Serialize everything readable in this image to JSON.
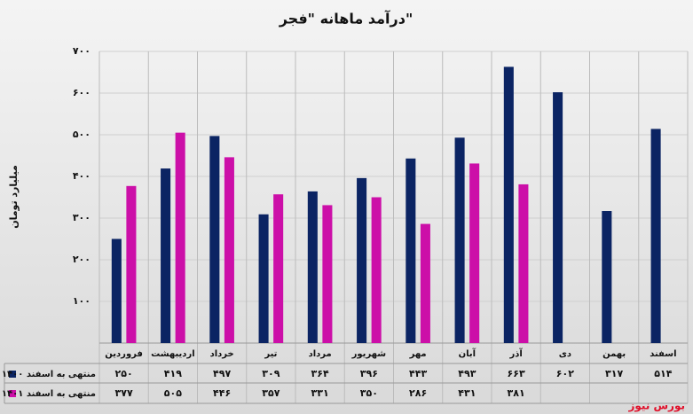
{
  "chart_data": {
    "type": "bar",
    "title": "درآمد ماهانه \"فجر\"",
    "y_label": "میلیارد تومان",
    "source": "بورس نیوز",
    "categories": [
      "فروردین",
      "اردیبهشت",
      "خرداد",
      "تیر",
      "مرداد",
      "شهریور",
      "مهر",
      "آبان",
      "آذر",
      "دی",
      "بهمن",
      "اسفند"
    ],
    "series": [
      {
        "name": "منتهی به اسفند ۱۴۰۰",
        "color": "#0b2463",
        "values": [
          250,
          419,
          497,
          309,
          364,
          396,
          443,
          493,
          663,
          602,
          317,
          514
        ],
        "value_labels": [
          "۲۵۰",
          "۴۱۹",
          "۴۹۷",
          "۳۰۹",
          "۳۶۴",
          "۳۹۶",
          "۴۴۳",
          "۴۹۳",
          "۶۶۳",
          "۶۰۲",
          "۳۱۷",
          "۵۱۴"
        ]
      },
      {
        "name": "منتهی به اسفند ۱۴۰۱",
        "color": "#cc0fa8",
        "values": [
          377,
          505,
          446,
          357,
          331,
          350,
          286,
          431,
          381,
          null,
          null,
          null
        ],
        "value_labels": [
          "۳۷۷",
          "۵۰۵",
          "۴۴۶",
          "۳۵۷",
          "۳۳۱",
          "۳۵۰",
          "۲۸۶",
          "۴۳۱",
          "۳۸۱",
          null,
          null,
          null
        ]
      }
    ],
    "ylim": [
      0,
      700
    ],
    "yticks": [
      {
        "value": 100,
        "label": "۱۰۰"
      },
      {
        "value": 200,
        "label": "۲۰۰"
      },
      {
        "value": 300,
        "label": "۳۰۰"
      },
      {
        "value": 400,
        "label": "۴۰۰"
      },
      {
        "value": 500,
        "label": "۵۰۰"
      },
      {
        "value": 600,
        "label": "۶۰۰"
      },
      {
        "value": 700,
        "label": "۷۰۰"
      }
    ],
    "grid": true
  }
}
